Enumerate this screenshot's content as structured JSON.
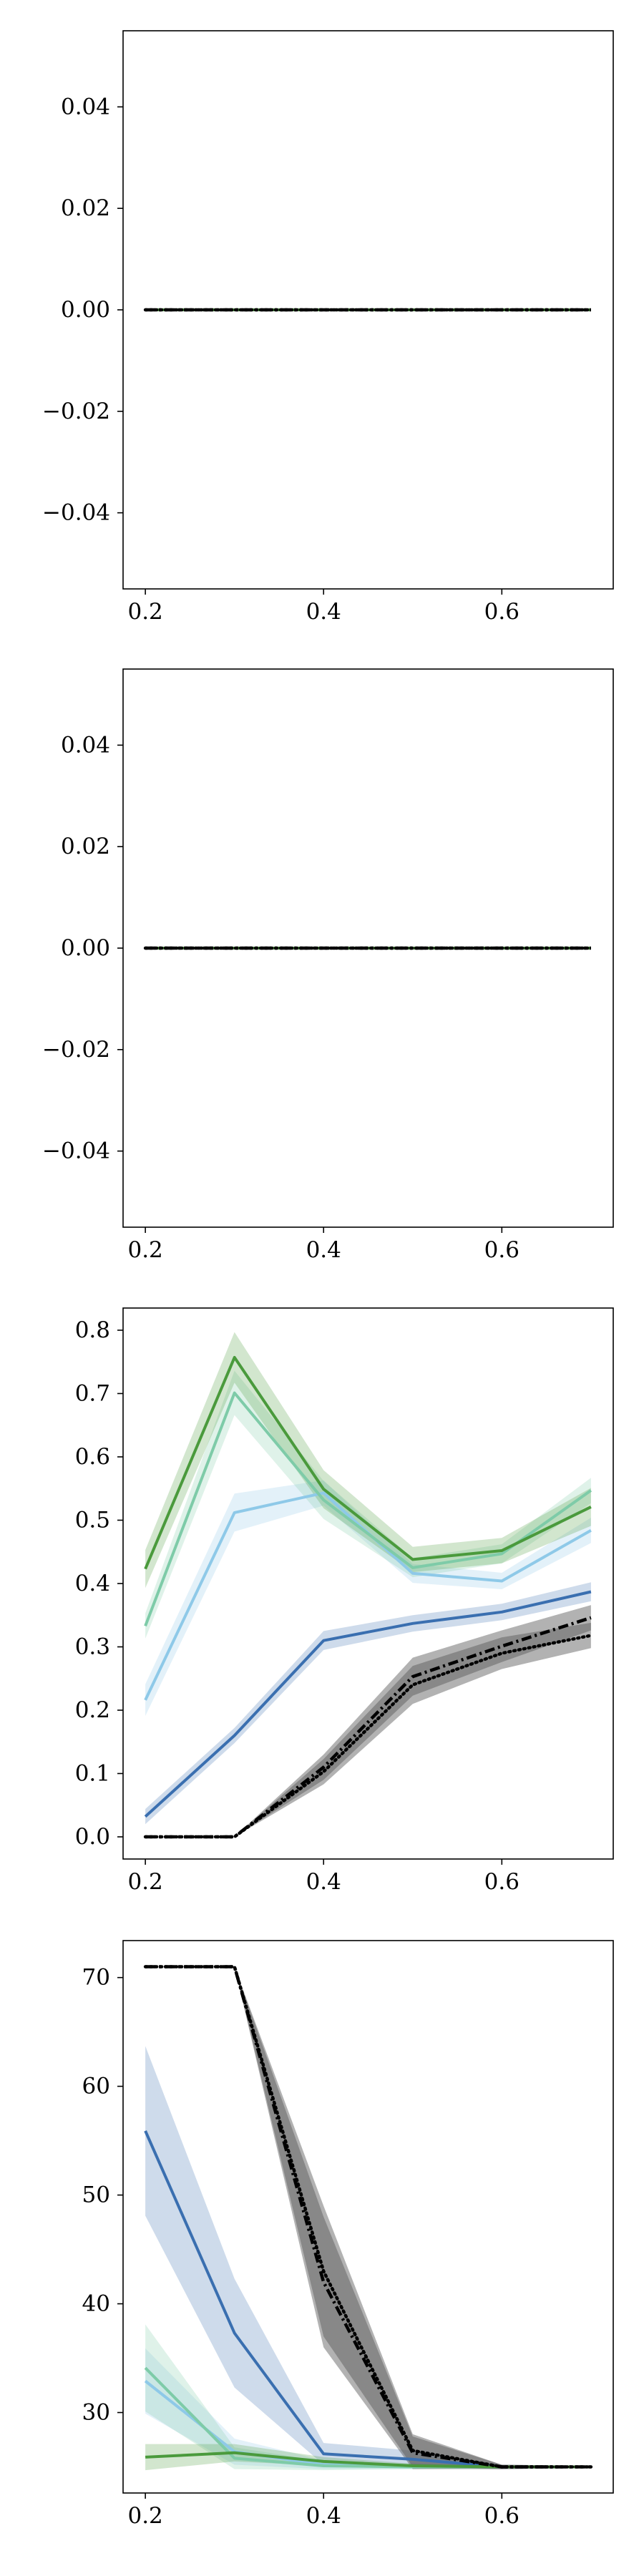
{
  "chart_data": [
    {
      "type": "line",
      "title": "",
      "xlabel": "",
      "ylabel": "",
      "x": [
        0.2,
        0.3,
        0.4,
        0.5,
        0.6,
        0.7
      ],
      "xlim": [
        0.175,
        0.725
      ],
      "ylim": [
        -0.055,
        0.055
      ],
      "xticks": [
        "0.2",
        "0.4",
        "0.6"
      ],
      "xtick_values": [
        0.2,
        0.4,
        0.6
      ],
      "yticks": [
        "−0.04",
        "−0.02",
        "0.00",
        "0.02",
        "0.04"
      ],
      "ytick_values": [
        -0.04,
        -0.02,
        0.0,
        0.02,
        0.04
      ],
      "series": [
        {
          "style": "solid",
          "color": "#3a6fb0",
          "values": [
            0,
            0,
            0,
            0,
            0,
            0
          ]
        },
        {
          "style": "solid",
          "color": "#8ec9e8",
          "values": [
            0,
            0,
            0,
            0,
            0,
            0
          ]
        },
        {
          "style": "solid",
          "color": "#7ecba8",
          "values": [
            0,
            0,
            0,
            0,
            0,
            0
          ]
        },
        {
          "style": "solid",
          "color": "#4a9a3c",
          "values": [
            0,
            0,
            0,
            0,
            0,
            0
          ]
        },
        {
          "style": "dotted",
          "color": "#000000",
          "values": [
            0,
            0,
            0,
            0,
            0,
            0
          ]
        },
        {
          "style": "dashdot",
          "color": "#000000",
          "values": [
            0,
            0,
            0,
            0,
            0,
            0
          ]
        }
      ]
    },
    {
      "type": "line",
      "title": "",
      "xlabel": "",
      "ylabel": "",
      "x": [
        0.2,
        0.3,
        0.4,
        0.5,
        0.6,
        0.7
      ],
      "xlim": [
        0.175,
        0.725
      ],
      "ylim": [
        -0.055,
        0.055
      ],
      "xticks": [
        "0.2",
        "0.4",
        "0.6"
      ],
      "xtick_values": [
        0.2,
        0.4,
        0.6
      ],
      "yticks": [
        "−0.04",
        "−0.02",
        "0.00",
        "0.02",
        "0.04"
      ],
      "ytick_values": [
        -0.04,
        -0.02,
        0.0,
        0.02,
        0.04
      ],
      "series": [
        {
          "style": "solid",
          "color": "#3a6fb0",
          "values": [
            0,
            0,
            0,
            0,
            0,
            0
          ]
        },
        {
          "style": "solid",
          "color": "#8ec9e8",
          "values": [
            0,
            0,
            0,
            0,
            0,
            0
          ]
        },
        {
          "style": "solid",
          "color": "#7ecba8",
          "values": [
            0,
            0,
            0,
            0,
            0,
            0
          ]
        },
        {
          "style": "solid",
          "color": "#4a9a3c",
          "values": [
            0,
            0,
            0,
            0,
            0,
            0
          ]
        },
        {
          "style": "dotted",
          "color": "#000000",
          "values": [
            0,
            0,
            0,
            0,
            0,
            0
          ]
        },
        {
          "style": "dashdot",
          "color": "#000000",
          "values": [
            0,
            0,
            0,
            0,
            0,
            0
          ]
        }
      ]
    },
    {
      "type": "line",
      "title": "",
      "xlabel": "",
      "ylabel": "",
      "x": [
        0.2,
        0.3,
        0.4,
        0.5,
        0.6,
        0.7
      ],
      "xlim": [
        0.175,
        0.725
      ],
      "ylim": [
        -0.035,
        0.835
      ],
      "xticks": [
        "0.2",
        "0.4",
        "0.6"
      ],
      "xtick_values": [
        0.2,
        0.4,
        0.6
      ],
      "yticks": [
        "0.0",
        "0.1",
        "0.2",
        "0.3",
        "0.4",
        "0.5",
        "0.6",
        "0.7",
        "0.8"
      ],
      "ytick_values": [
        0.0,
        0.1,
        0.2,
        0.3,
        0.4,
        0.5,
        0.6,
        0.7,
        0.8
      ],
      "series": [
        {
          "style": "solid",
          "color": "#3a6fb0",
          "values": [
            0.032,
            0.16,
            0.31,
            0.337,
            0.355,
            0.387
          ],
          "band": [
            0.012,
            0.012,
            0.015,
            0.013,
            0.013,
            0.015
          ]
        },
        {
          "style": "solid",
          "color": "#8ec9e8",
          "values": [
            0.216,
            0.512,
            0.543,
            0.416,
            0.404,
            0.484
          ],
          "band": [
            0.025,
            0.03,
            0.02,
            0.015,
            0.013,
            0.02
          ]
        },
        {
          "style": "solid",
          "color": "#7ecba8",
          "values": [
            0.333,
            0.701,
            0.532,
            0.425,
            0.447,
            0.547
          ],
          "band": [
            0.02,
            0.035,
            0.03,
            0.015,
            0.015,
            0.02
          ]
        },
        {
          "style": "solid",
          "color": "#4a9a3c",
          "values": [
            0.423,
            0.757,
            0.549,
            0.438,
            0.452,
            0.521
          ],
          "band": [
            0.03,
            0.04,
            0.03,
            0.02,
            0.02,
            0.03
          ]
        },
        {
          "style": "dotted",
          "color": "#000000",
          "values": [
            0.0,
            0.0,
            0.103,
            0.24,
            0.29,
            0.318
          ],
          "band": [
            0,
            0,
            0.02,
            0.03,
            0.025,
            0.02
          ]
        },
        {
          "style": "dashdot",
          "color": "#000000",
          "values": [
            0.0,
            0.0,
            0.11,
            0.253,
            0.301,
            0.346
          ],
          "band": [
            0,
            0,
            0.02,
            0.03,
            0.025,
            0.02
          ]
        }
      ]
    },
    {
      "type": "line",
      "title": "",
      "xlabel": "",
      "ylabel": "",
      "x": [
        0.2,
        0.3,
        0.4,
        0.5,
        0.6,
        0.7
      ],
      "xlim": [
        0.175,
        0.725
      ],
      "ylim": [
        22.6,
        73.4
      ],
      "xticks": [
        "0.2",
        "0.4",
        "0.6"
      ],
      "xtick_values": [
        0.2,
        0.4,
        0.6
      ],
      "yticks": [
        "30",
        "40",
        "50",
        "60",
        "70"
      ],
      "ytick_values": [
        30,
        40,
        50,
        60,
        70
      ],
      "series": [
        {
          "style": "solid",
          "color": "#3a6fb0",
          "values": [
            55.9,
            37.3,
            26.2,
            25.7,
            25.0,
            25.0
          ],
          "band": [
            7.8,
            5.0,
            1.0,
            0.8,
            0.2,
            0.1
          ]
        },
        {
          "style": "solid",
          "color": "#8ec9e8",
          "values": [
            32.9,
            26.4,
            25.2,
            25.0,
            25.0,
            25.0
          ],
          "band": [
            3.0,
            1.2,
            0.4,
            0.2,
            0.1,
            0.1
          ]
        },
        {
          "style": "solid",
          "color": "#7ecba8",
          "values": [
            34.1,
            25.8,
            25.1,
            25.0,
            25.0,
            25.0
          ],
          "band": [
            4.0,
            1.0,
            0.4,
            0.2,
            0.1,
            0.1
          ]
        },
        {
          "style": "solid",
          "color": "#4a9a3c",
          "values": [
            25.9,
            26.3,
            25.5,
            25.1,
            25.0,
            25.0
          ],
          "band": [
            1.2,
            0.8,
            0.4,
            0.2,
            0.1,
            0.1
          ]
        },
        {
          "style": "dotted",
          "color": "#000000",
          "values": [
            71.0,
            71.0,
            43.0,
            26.5,
            25.0,
            25.0
          ],
          "band": [
            0,
            0,
            6.0,
            1.5,
            0.2,
            0.1
          ]
        },
        {
          "style": "dashdot",
          "color": "#000000",
          "values": [
            71.0,
            71.0,
            42.0,
            26.3,
            25.0,
            25.0
          ],
          "band": [
            0,
            0,
            6.0,
            1.5,
            0.2,
            0.1
          ]
        }
      ]
    }
  ]
}
